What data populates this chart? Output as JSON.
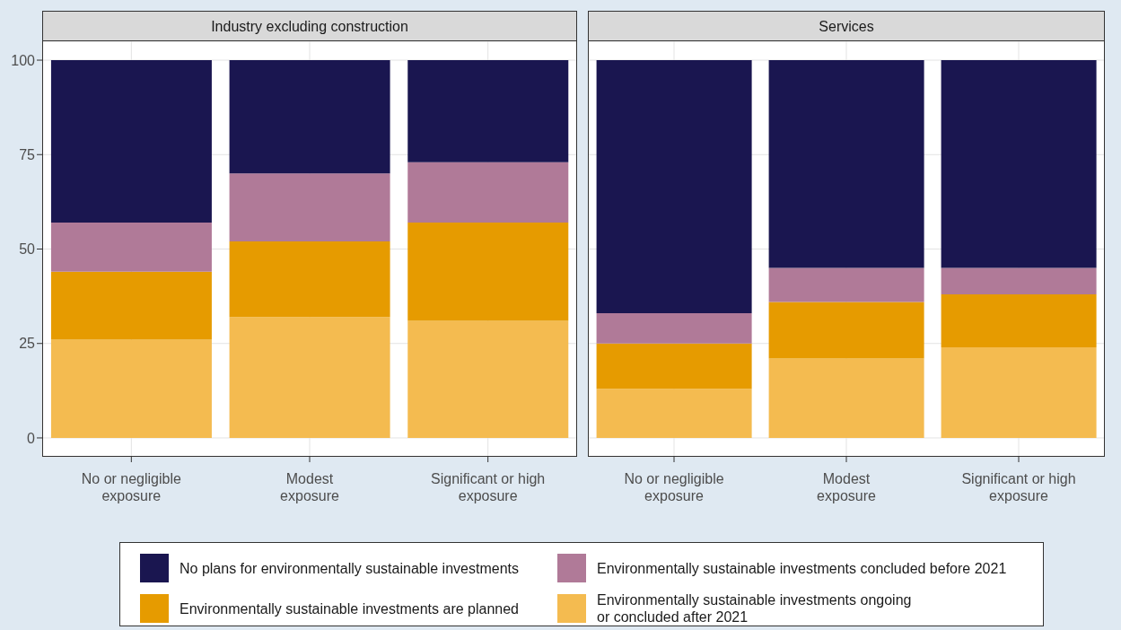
{
  "chart_data": [
    {
      "type": "bar",
      "title": "Industry excluding construction",
      "categories": [
        "No or negligible exposure",
        "Modest exposure",
        "Significant or high exposure"
      ],
      "stacked": true,
      "ylim": [
        -5,
        105
      ],
      "yticks": [
        0,
        25,
        50,
        75,
        100
      ],
      "grid": true,
      "legend": "bottom",
      "series": [
        {
          "name": "Environmentally sustainable investments ongoing\nor concluded after 2021",
          "color": "#f4bb50",
          "values": [
            26,
            32,
            31
          ]
        },
        {
          "name": "Environmentally sustainable investments are planned",
          "color": "#e69b00",
          "values": [
            18,
            20,
            26
          ]
        },
        {
          "name": "Environmentally sustainable investments concluded before 2021",
          "color": "#b07a98",
          "values": [
            13,
            18,
            16
          ]
        },
        {
          "name": "No plans for environmentally sustainable investments",
          "color": "#1a1650",
          "values": [
            43,
            30,
            27
          ]
        }
      ]
    },
    {
      "type": "bar",
      "title": "Services",
      "categories": [
        "No or negligible exposure",
        "Modest exposure",
        "Significant or high exposure"
      ],
      "stacked": true,
      "ylim": [
        -5,
        105
      ],
      "yticks": [
        0,
        25,
        50,
        75,
        100
      ],
      "grid": true,
      "tick_labels": "x",
      "series": [
        {
          "color": "#f4bb50",
          "values": [
            13,
            21,
            24
          ]
        },
        {
          "color": "#e69b00",
          "values": [
            12,
            15,
            14
          ]
        },
        {
          "color": "#b07a98",
          "values": [
            8,
            9,
            7
          ]
        },
        {
          "color": "#1a1650",
          "values": [
            67,
            55,
            55
          ]
        }
      ]
    }
  ]
}
